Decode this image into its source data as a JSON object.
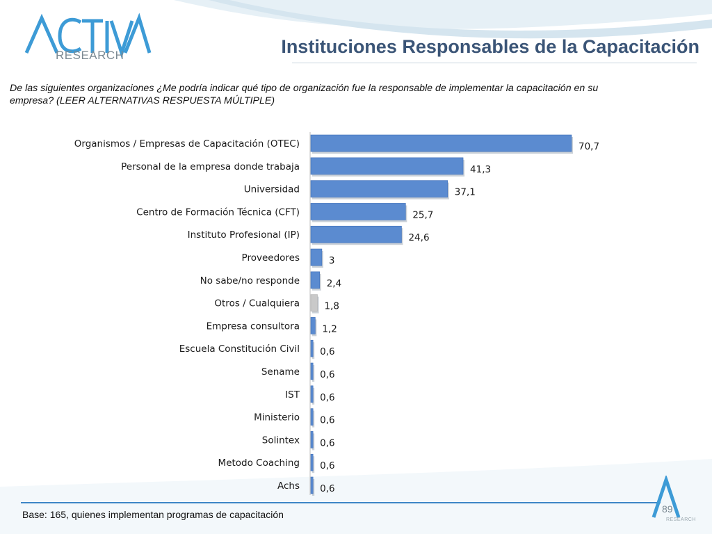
{
  "header": {
    "logo_text": "RESEARCH",
    "title": "Instituciones Responsables de la Capacitación"
  },
  "question": "De las siguientes organizaciones ¿Me podría indicar qué tipo de organización fue la responsable de implementar la capacitación en su empresa? (LEER ALTERNATIVAS RESPUESTA MÚLTIPLE)",
  "footer": {
    "base_note": "Base: 165, quienes implementan programas de capacitación",
    "page_number": "89",
    "mini_logo_text": "RESEARCH"
  },
  "colors": {
    "bar": "#5b8bd0",
    "bar_highlight": "#c9c9c9",
    "title": "#3b5577",
    "accent": "#3d86c6"
  },
  "chart_data": {
    "type": "bar",
    "orientation": "horizontal",
    "title": "",
    "xlabel": "",
    "ylabel": "",
    "xlim": [
      0,
      75
    ],
    "grid": false,
    "categories": [
      "Organismos / Empresas de Capacitación (OTEC)",
      "Personal de la empresa donde trabaja",
      "Universidad",
      "Centro de Formación Técnica (CFT)",
      "Instituto Profesional (IP)",
      "Proveedores",
      "No sabe/no responde",
      "Otros / Cualquiera",
      "Empresa consultora",
      "Escuela Constitución Civil",
      "Sename",
      "IST",
      "Ministerio",
      "Solintex",
      "Metodo Coaching",
      "Achs"
    ],
    "values": [
      70.7,
      41.3,
      37.1,
      25.7,
      24.6,
      3,
      2.4,
      1.8,
      1.2,
      0.6,
      0.6,
      0.6,
      0.6,
      0.6,
      0.6,
      0.6
    ],
    "value_labels": [
      "70,7",
      "41,3",
      "37,1",
      "25,7",
      "24,6",
      "3",
      "2,4",
      "1,8",
      "1,2",
      "0,6",
      "0,6",
      "0,6",
      "0,6",
      "0,6",
      "0,6",
      "0,6"
    ],
    "highlight_category": "Otros / Cualquiera"
  }
}
